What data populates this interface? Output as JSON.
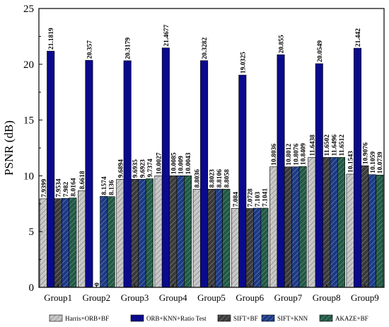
{
  "chart_data": {
    "type": "bar",
    "categories": [
      "Group1",
      "Group2",
      "Group3",
      "Group4",
      "Group5",
      "Group6",
      "Group7",
      "Group8",
      "Group9"
    ],
    "ylabel": "PSNR (dB)",
    "xlabel": "",
    "ylim": [
      0,
      25
    ],
    "yticks": [
      0,
      5,
      10,
      15,
      20,
      25
    ],
    "grid": false,
    "legend_position": "bottom",
    "series": [
      {
        "name": "Harris+ORB+BF",
        "color": "#c8c8c8",
        "hatch": "diagonal",
        "values": [
          7.9399,
          8.6618,
          9.6894,
          10.0027,
          8.8036,
          7.084,
          10.8036,
          11.6438,
          10.1543
        ],
        "labels": [
          "7.9399",
          "8.6618",
          "9.6894",
          "10.0027",
          "8.8036",
          "7.084",
          "10.8036",
          "11.6438",
          "10.1543"
        ]
      },
      {
        "name": "ORB+KNN+Ratio Test",
        "color": "#0a0a8c",
        "hatch": "none",
        "values": [
          21.1819,
          20.357,
          20.3179,
          21.4677,
          20.3282,
          19.0325,
          20.855,
          20.0549,
          21.442
        ],
        "labels": [
          "21.1819",
          "20.357",
          "20.3179",
          "21.4677",
          "20.3282",
          "19.0325",
          "20.855",
          "20.0549",
          "21.442"
        ]
      },
      {
        "name": "SIFT+BF",
        "color": "#3a3a3a",
        "hatch": "diagonal",
        "values": [
          7.9534,
          0,
          9.6935,
          10.0085,
          8.8023,
          7.0728,
          10.8012,
          11.6502,
          10.9076
        ],
        "labels": [
          "7.9534",
          "0",
          "9.6935",
          "10.0085",
          "8.8023",
          "7.0728",
          "10.8012",
          "11.6502",
          "10.9076"
        ]
      },
      {
        "name": "SIFT+KNN",
        "color": "#1a3a8a",
        "hatch": "diagonal",
        "values": [
          7.982,
          8.1574,
          9.6923,
          10.009,
          8.8106,
          7.103,
          10.8076,
          11.6496,
          10.1059
        ],
        "labels": [
          "7.982",
          "8.1574",
          "9.6923",
          "10.009",
          "8.8106",
          "7.103",
          "10.8076",
          "11.6496",
          "10.1059"
        ]
      },
      {
        "name": "AKAZE+BF",
        "color": "#1e5a45",
        "hatch": "diagonal",
        "values": [
          8.0164,
          8.136,
          9.7374,
          10.0043,
          8.8058,
          7.1041,
          10.8409,
          11.6512,
          10.0739
        ],
        "labels": [
          "8.0164",
          "8.136",
          "9.7374",
          "10.0043",
          "8.8058",
          "7.1041",
          "10.8409",
          "11.6512",
          "10.0739"
        ]
      }
    ]
  }
}
